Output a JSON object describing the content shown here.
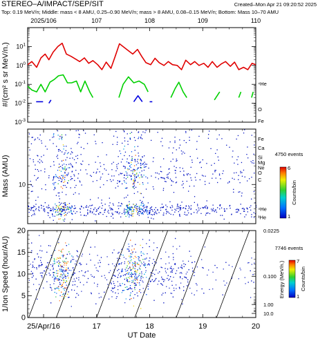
{
  "header": {
    "title": "STEREO–A/IMPACT/SEP/SIT",
    "created": "Created–Mon Apr 21 09:20:52 2025",
    "description": "Top: 0.19 MeV/n; Middle: mass < 8 AMU, 0.25–0.90 MeV/n; mass > 8 AMU, 0.08–0.15 MeV/n; Bottom: Mass 10–70 AMU"
  },
  "top_axis": {
    "doy_ticks": [
      {
        "day": 16,
        "label": "2025/106"
      },
      {
        "day": 17,
        "label": "107"
      },
      {
        "day": 18,
        "label": "108"
      },
      {
        "day": 19,
        "label": "109"
      },
      {
        "day": 20,
        "label": "110"
      }
    ]
  },
  "bottom_axis": {
    "ticks": [
      {
        "day": 16,
        "label": "25/Apr/16"
      },
      {
        "day": 17,
        "label": "17"
      },
      {
        "day": 18,
        "label": "18"
      },
      {
        "day": 19,
        "label": "19"
      },
      {
        "day": 20,
        "label": "20"
      }
    ],
    "label": "UT Date"
  },
  "colors": {
    "He": "#e00000",
    "O": "#00d000",
    "Fe": "#0000e0",
    "axis": "#000000",
    "text": "#000000"
  },
  "chart_data": [
    {
      "type": "line",
      "panel": "intensity",
      "ylabel": "#/(cm² s sr MeV/n.)",
      "yscale": "log",
      "ylim": [
        0.001,
        100
      ],
      "xlim": [
        15.7,
        20
      ],
      "y_tick_labels": [
        {
          "value": 10,
          "base": "10",
          "exp": "1"
        },
        {
          "value": 1,
          "base": "10",
          "exp": "0"
        },
        {
          "value": 0.1,
          "base": "10",
          "exp": "-1"
        },
        {
          "value": 0.01,
          "base": "10",
          "exp": "-2"
        },
        {
          "value": 0.001,
          "base": "10",
          "exp": "-3"
        }
      ],
      "series": [
        {
          "name": "⁴He",
          "color": "#e00000",
          "x": [
            15.7,
            15.78,
            15.87,
            15.95,
            16.03,
            16.1,
            16.18,
            16.27,
            16.35,
            16.43,
            16.52,
            16.6,
            16.68,
            16.77,
            16.85,
            16.93,
            17.02,
            17.1,
            17.18,
            17.27,
            17.35,
            17.43,
            17.52,
            17.6,
            17.68,
            17.77,
            17.85,
            17.93,
            18.02,
            18.1,
            18.18,
            18.27,
            18.35,
            18.43,
            18.52,
            18.6,
            18.68,
            18.77,
            18.85,
            18.93,
            19.02,
            19.1,
            19.18,
            19.27,
            19.35,
            19.43,
            19.52,
            19.6,
            19.68,
            19.77,
            19.85,
            19.93,
            20.0
          ],
          "y": [
            1.1,
            1.6,
            0.8,
            2.5,
            4,
            2,
            5,
            10,
            15,
            4,
            3,
            2.2,
            1.6,
            2.5,
            1.3,
            1.8,
            1.1,
            0.6,
            1.5,
            0.7,
            3,
            14,
            9,
            6,
            4,
            7,
            3,
            1.4,
            1.1,
            2.4,
            1.4,
            1,
            1.6,
            1.1,
            1,
            0.6,
            1.9,
            1.1,
            1.6,
            1,
            1.3,
            0.8,
            1.6,
            0.8,
            1.2,
            1.6,
            0.9,
            1.5,
            0.6,
            0.8,
            0.6,
            1.3,
            1.1
          ]
        },
        {
          "name": "O",
          "color": "#00d000",
          "segments": [
            {
              "x": [
                15.7,
                15.78,
                15.87,
                15.95,
                16.03,
                16.12,
                16.2,
                16.28,
                16.37,
                16.45,
                16.53,
                16.62,
                16.7,
                16.78,
                16.87,
                16.93
              ],
              "y": [
                0.08,
                0.05,
                0.04,
                0.1,
                0.04,
                0.13,
                0.18,
                0.28,
                0.32,
                0.12,
                0.12,
                0.15,
                0.04,
                0.15,
                0.04,
                0.02
              ]
            },
            {
              "x": [
                17.42,
                17.5,
                17.6,
                17.7,
                17.8,
                17.9,
                17.97
              ],
              "y": [
                0.02,
                0.1,
                0.25,
                0.12,
                0.15,
                0.1,
                0.04
              ]
            },
            {
              "x": [
                18.4,
                18.48,
                18.55,
                18.63,
                18.7
              ],
              "y": [
                0.02,
                0.06,
                0.13,
                0.04,
                0.02
              ]
            },
            {
              "x": [
                19.22,
                19.32
              ],
              "y": [
                0.015,
                0.04
              ]
            },
            {
              "x": [
                19.68,
                19.72
              ],
              "y": [
                0.02,
                0.04
              ]
            },
            {
              "x": [
                19.92,
                19.95
              ],
              "y": [
                0.02,
                0.04
              ]
            }
          ]
        },
        {
          "name": "Fe",
          "color": "#0000e0",
          "segments": [
            {
              "x": [
                15.86,
                15.99
              ],
              "y": [
                0.012,
                0.012
              ]
            },
            {
              "x": [
                16.1,
                16.14
              ],
              "y": [
                0.01,
                0.015
              ]
            },
            {
              "x": [
                17.7,
                17.78,
                17.86
              ],
              "y": [
                0.012,
                0.025,
                0.012
              ]
            },
            {
              "x": [
                18.0,
                18.05
              ],
              "y": [
                0.012,
                0.012
              ]
            }
          ]
        }
      ],
      "legend": [
        {
          "text": "⁴He",
          "color": "#e00000"
        },
        {
          "text": "O",
          "color": "#00d000"
        },
        {
          "text": "Fe",
          "color": "#0000e0"
        }
      ]
    },
    {
      "type": "scatter",
      "panel": "mass",
      "ylabel": "Mass (AMU)",
      "yscale": "log",
      "ylim": [
        2.3,
        80
      ],
      "y_tick_labels": [
        {
          "value": 10,
          "label": "10"
        }
      ],
      "element_labels": [
        {
          "text": "Fe",
          "mass": 56
        },
        {
          "text": "Ca",
          "mass": 40
        },
        {
          "text": "Si",
          "mass": 28
        },
        {
          "text": "Mg",
          "mass": 24
        },
        {
          "text": "Ne",
          "mass": 20
        },
        {
          "text": "O",
          "mass": 16
        },
        {
          "text": "C",
          "mass": 12
        },
        {
          "text": "⁴He",
          "mass": 4
        },
        {
          "text": "³He",
          "mass": 3
        }
      ],
      "colorbar": {
        "events": "4750 events",
        "label": "Counts/bin",
        "min": "1",
        "max": "6"
      }
    },
    {
      "type": "scatter",
      "panel": "velocity",
      "ylabel": "1/Ion Speed (hour/AU)",
      "ylim": [
        0,
        20
      ],
      "y_tick_labels": [
        "0",
        "5",
        "10",
        "15",
        "20"
      ],
      "right_axis": {
        "label": "Energy (MeV/n.)",
        "tick_labels": [
          "0.0225",
          "0.100",
          "1.00",
          "10.0"
        ]
      },
      "colorbar": {
        "events": "7746 events",
        "label": "Counts/bin",
        "min": "1",
        "max": "7"
      }
    }
  ]
}
